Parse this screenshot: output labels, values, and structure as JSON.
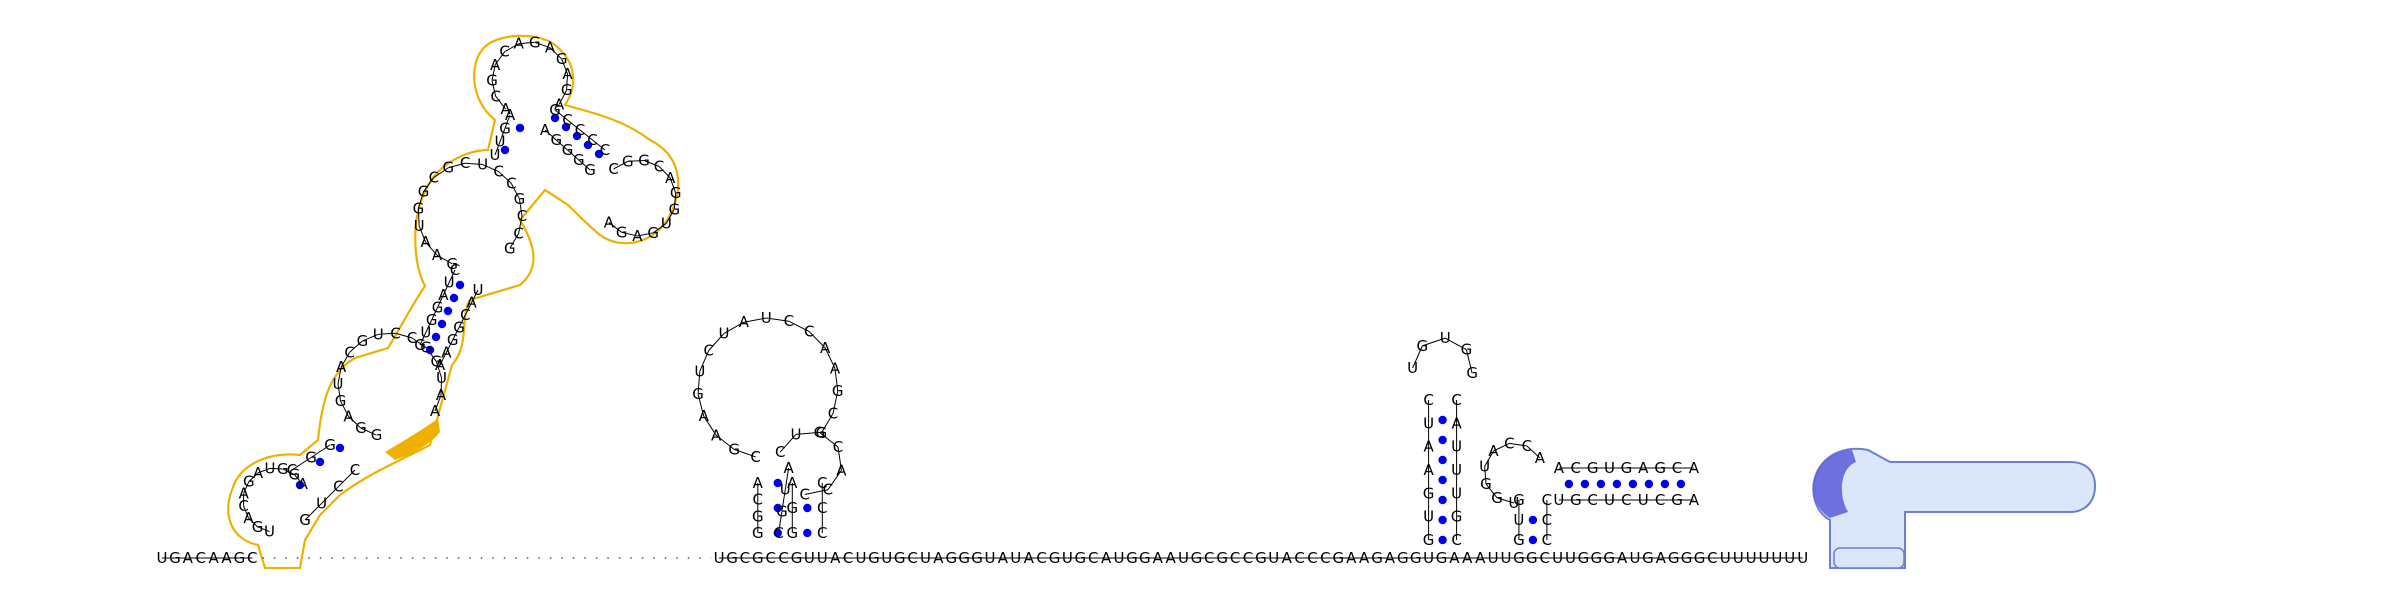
{
  "diagram": {
    "type": "rna-secondary-structure",
    "base_y_seq": "UGACAAGC",
    "gap_length": 44,
    "main_seq": "UGCGCCGUUACUGUGCUAGGGUAUACGUGCAUGGAAUGCGCCGUACCCGAAGAGGUGAAAUUGGCUUGGGAUGAGGGCUUUUUUU",
    "colors": {
      "pair_dot": "#0000ee",
      "highlight_orange_outline": "#f0b000",
      "highlight_orange_fill": "#f0b000",
      "highlight_blue_outline": "#6a7fd6",
      "highlight_blue_fill": "#dce6fa",
      "highlight_blue_dark": "#5a5ad8",
      "backbone": "#000000"
    },
    "hairpins": [
      {
        "name": "left-structure",
        "sequence_5p": "GUCAAGGGAUCUGGAGACUGGGUCCUACGCAGAGCC",
        "pairs": "GC UC CG GG UC AU GC",
        "loop": "CAGAGA CGGCAG GACGAG",
        "sequence_3p": "CCAGCUCCGAAGG"
      },
      {
        "name": "middle-hairpin-1",
        "stem_5p": "CGC",
        "stem_3p": "CGU",
        "loop": "AUCCAAGCGUCGUGCG"
      },
      {
        "name": "middle-hairpin-2",
        "stem_5p": "GCC",
        "stem_3p": "CCC",
        "loop": "ACUGCAC"
      },
      {
        "name": "right-hairpin-1",
        "stem_5p": "GGUAAUCG",
        "stem_3p": "CGUUUAC",
        "loop": "CUGUGG"
      },
      {
        "name": "right-hairpin-2",
        "stem_5p": "GGUUG ACGUGAGCA",
        "stem_3p": "CCC AGCUCUCGU",
        "loop": "ACCA"
      }
    ]
  }
}
